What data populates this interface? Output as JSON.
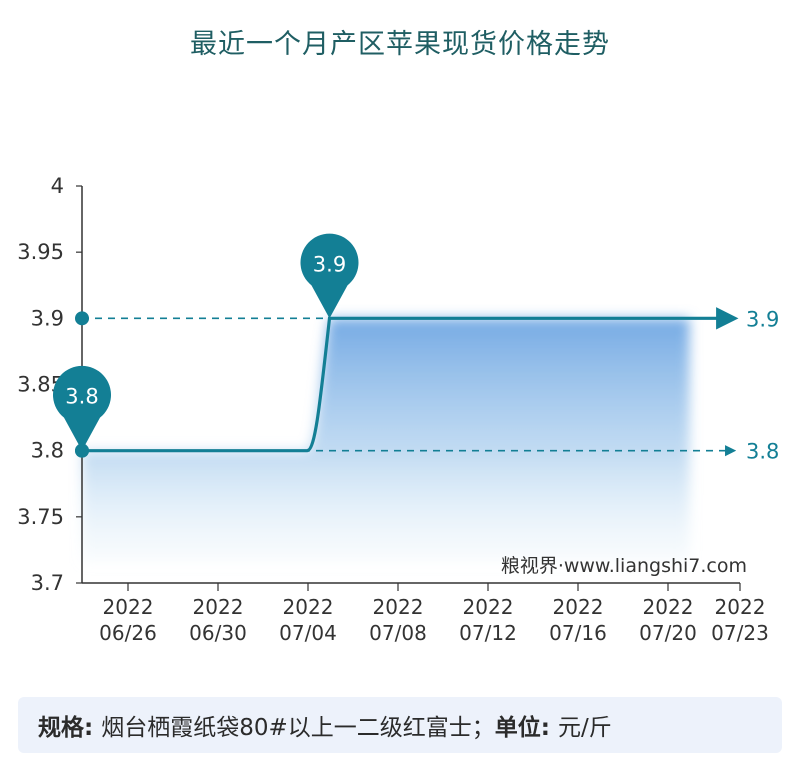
{
  "chart_data": {
    "type": "line",
    "title": "最近一个月产区苹果现货价格走势",
    "x": [
      "2022-06-26",
      "2022-07-06",
      "2022-07-07",
      "2022-07-23"
    ],
    "y": [
      3.8,
      3.8,
      3.9,
      3.9
    ],
    "xticks": [
      {
        "year": "2022",
        "date": "06/26"
      },
      {
        "year": "2022",
        "date": "06/30"
      },
      {
        "year": "2022",
        "date": "07/04"
      },
      {
        "year": "2022",
        "date": "07/08"
      },
      {
        "year": "2022",
        "date": "07/12"
      },
      {
        "year": "2022",
        "date": "07/16"
      },
      {
        "year": "2022",
        "date": "07/20"
      },
      {
        "year": "2022",
        "date": "07/23"
      }
    ],
    "yticks": [
      "4",
      "3.95",
      "3.9",
      "3.85",
      "3.8",
      "3.75",
      "3.7"
    ],
    "ylim": [
      3.7,
      4.0
    ],
    "callouts": [
      {
        "date": "2022-06-26",
        "label": "3.8",
        "value": 3.8
      },
      {
        "date": "2022-07-07",
        "label": "3.9",
        "value": 3.9
      }
    ],
    "reference_lines": [
      {
        "value": 3.9,
        "label": "3.9"
      },
      {
        "value": 3.8,
        "label": "3.8"
      }
    ],
    "watermark": "粮视界·www.liangshi7.com",
    "line_color": "#137f95",
    "fill_color": "#6ea6e3"
  },
  "footer": {
    "spec_label": "规格:",
    "spec_value": "烟台栖霞纸袋80#以上一二级红富士；",
    "unit_label": "单位:",
    "unit_value": "元/斤"
  }
}
